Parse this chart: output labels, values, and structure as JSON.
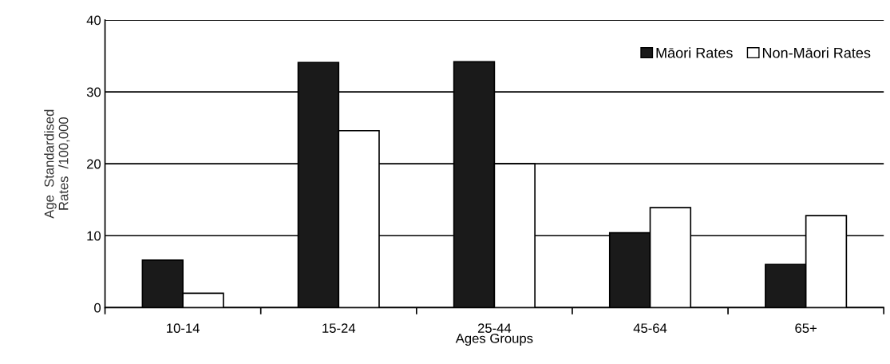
{
  "chart_data": {
    "type": "bar",
    "xlabel": "Ages Groups",
    "ylabel": "Age  Standardised\nRates  /100,000",
    "categories": [
      "10-14",
      "15-24",
      "25-44",
      "45-64",
      "65+"
    ],
    "series": [
      {
        "name": "Māori Rates",
        "color": "#1a1a1a",
        "values": [
          6.6,
          34.1,
          34.2,
          10.4,
          6.0
        ]
      },
      {
        "name": "Non-Māori Rates",
        "color": "#ffffff",
        "values": [
          2.0,
          24.6,
          20.0,
          13.9,
          12.8
        ]
      }
    ],
    "ylim": [
      0,
      40
    ],
    "yticks": [
      0,
      10,
      20,
      30,
      40
    ],
    "grid": "y",
    "legend": "top right"
  }
}
